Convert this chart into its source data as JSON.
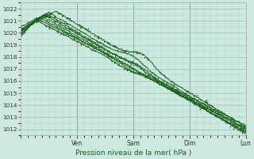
{
  "title": "",
  "xlabel": "Pression niveau de la mer( hPa )",
  "ylabel": "",
  "ylim": [
    1011.5,
    1022.5
  ],
  "yticks": [
    1012,
    1013,
    1014,
    1015,
    1016,
    1017,
    1018,
    1019,
    1020,
    1021,
    1022
  ],
  "xlim": [
    0,
    96
  ],
  "day_ticks": [
    24,
    48,
    72,
    96
  ],
  "day_labels": [
    "Ven",
    "Sam",
    "Dim",
    "Lun"
  ],
  "bg_color": "#cce8e0",
  "minor_grid_color": "#b8d8d0",
  "major_grid_color": "#99c4ba",
  "line_color": "#1a5e1a",
  "num_lines": 8
}
